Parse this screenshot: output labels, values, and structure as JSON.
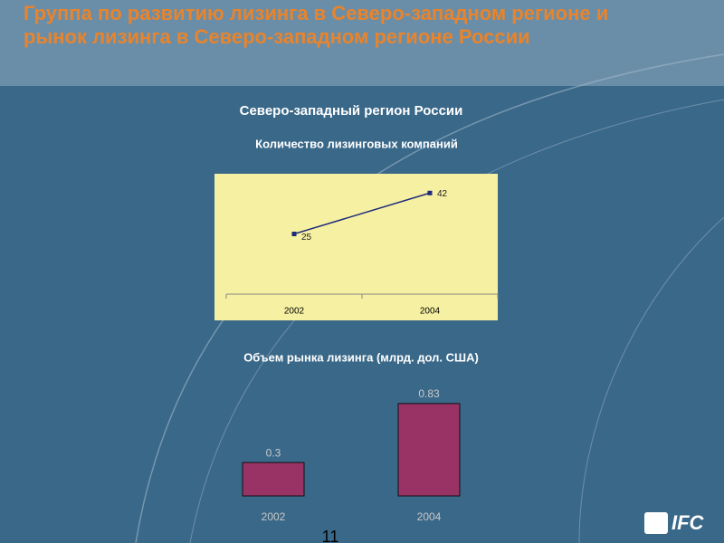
{
  "header": {
    "title": "Группа по развитию лизинга в Северо-западном регионе и рынок лизинга в Северо-западном регионе России",
    "subtitle": "Северо-западный регион России"
  },
  "chart_data": [
    {
      "type": "line",
      "title": "Количество лизинговых компаний",
      "categories": [
        "2002",
        "2004"
      ],
      "values": [
        25,
        42
      ],
      "color": "#1f2a7a",
      "background": "#f6f1a2",
      "ylim": [
        0,
        50
      ]
    },
    {
      "type": "bar",
      "title": "Объем рынка лизинга (млрд. дол. США)",
      "categories": [
        "2002",
        "2004"
      ],
      "values": [
        0.3,
        0.83
      ],
      "color": "#993366",
      "ylim": [
        0,
        1
      ]
    }
  ],
  "footer": {
    "page": "11",
    "logo": "IFC"
  }
}
